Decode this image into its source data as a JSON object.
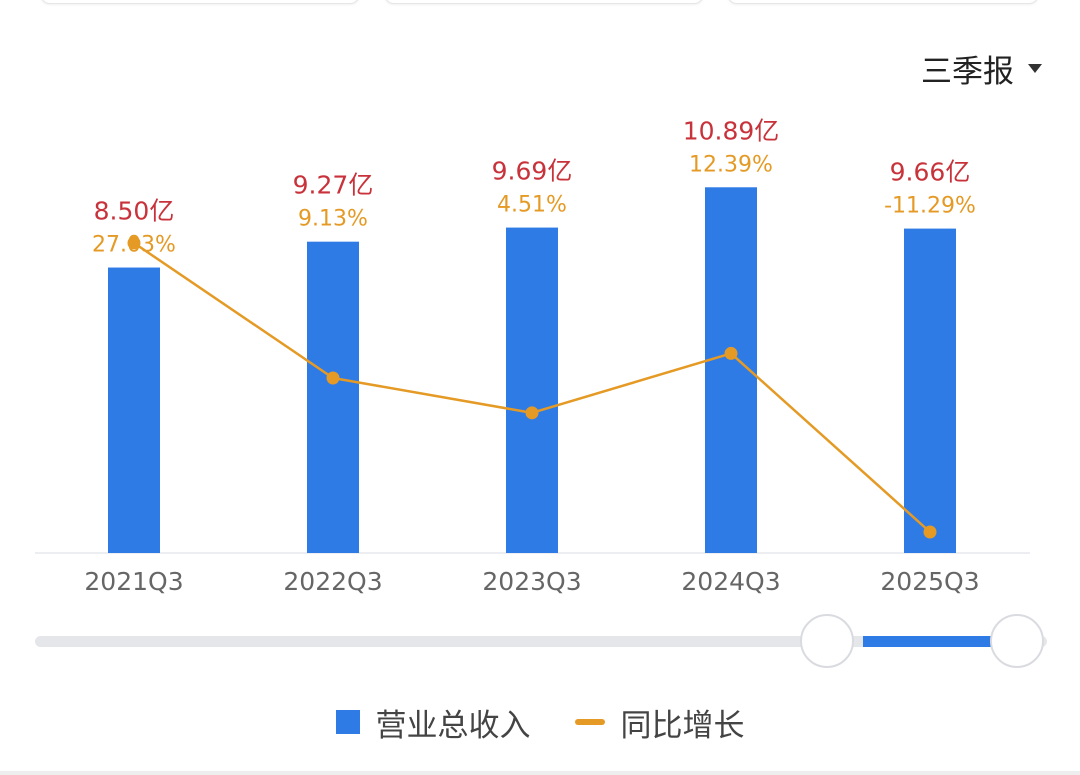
{
  "period_selector": {
    "label": "三季报"
  },
  "chart_data": {
    "type": "bar+line",
    "categories": [
      "2021Q3",
      "2022Q3",
      "2023Q3",
      "2024Q3",
      "2025Q3"
    ],
    "series": [
      {
        "name": "营业总收入",
        "type": "bar",
        "color": "#2f7be6",
        "values": [
          8.5,
          9.27,
          9.69,
          10.89,
          9.66
        ],
        "labels": [
          "8.50亿",
          "9.27亿",
          "9.69亿",
          "10.89亿",
          "9.66亿"
        ],
        "label_color": "#c8323a",
        "unit": "亿"
      },
      {
        "name": "同比增长",
        "type": "line",
        "color": "#e49a24",
        "values": [
          27.03,
          9.13,
          4.51,
          12.39,
          -11.29
        ],
        "labels": [
          "27.03%",
          "9.13%",
          "4.51%",
          "12.39%",
          "-11.29%"
        ],
        "unit": "%"
      }
    ],
    "bar_axis_range": [
      0,
      12
    ],
    "line_axis_range": [
      -15,
      30
    ],
    "grid": false,
    "legend_position": "bottom-center"
  },
  "legend": {
    "revenue_label": "营业总收入",
    "growth_label": "同比增长"
  }
}
